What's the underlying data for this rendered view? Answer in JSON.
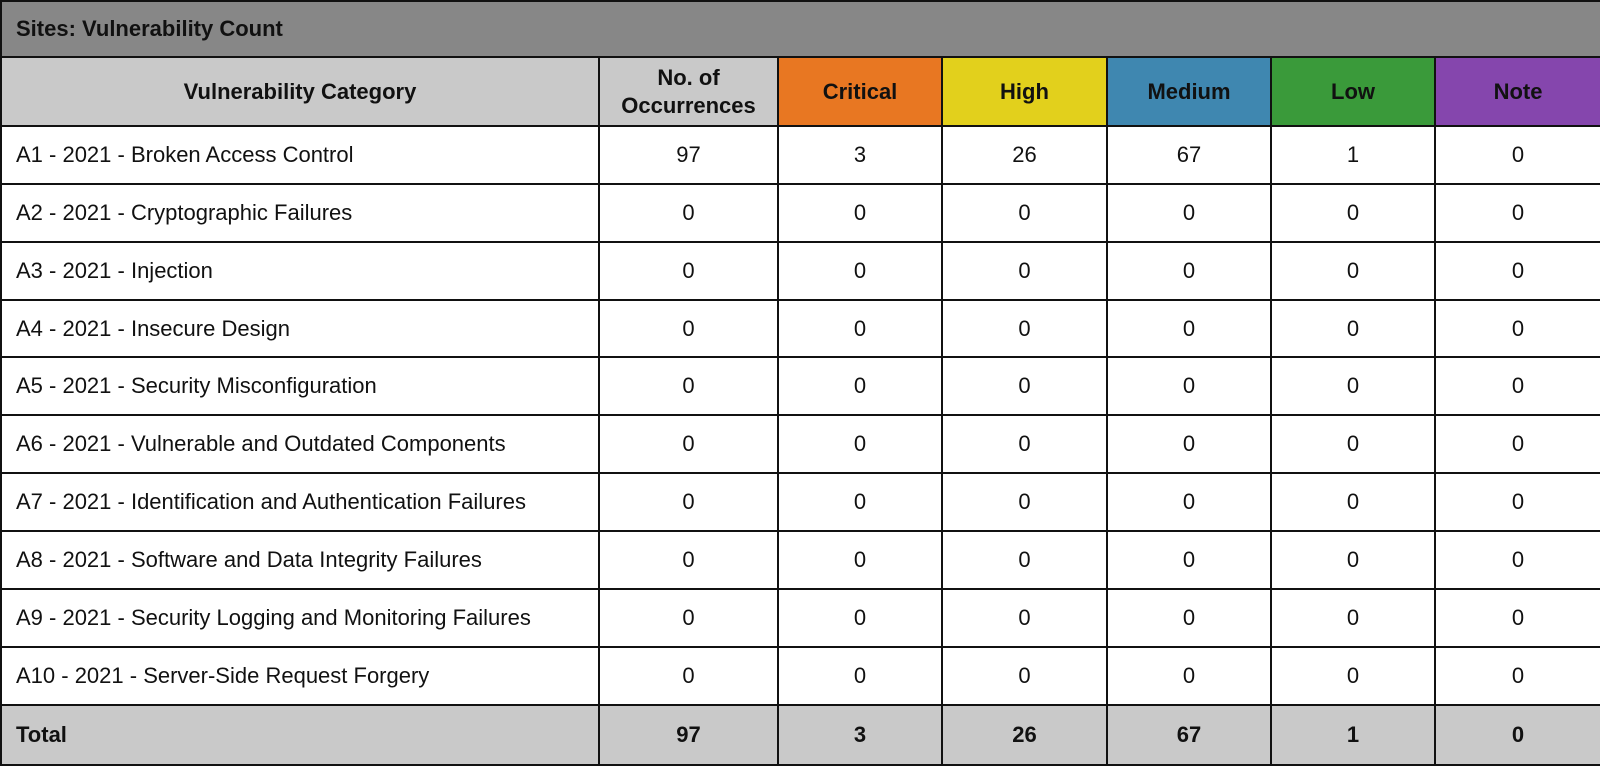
{
  "title": "Sites: Vulnerability Count",
  "table": {
    "columns": [
      "Vulnerability Category",
      "No. of Occurrences",
      "Critical",
      "High",
      "Medium",
      "Low",
      "Note"
    ],
    "rows": [
      [
        "A1 - 2021 - Broken Access Control",
        97,
        3,
        26,
        67,
        1,
        0
      ],
      [
        "A2 - 2021 - Cryptographic Failures",
        0,
        0,
        0,
        0,
        0,
        0
      ],
      [
        "A3 - 2021 - Injection",
        0,
        0,
        0,
        0,
        0,
        0
      ],
      [
        "A4 - 2021 - Insecure Design",
        0,
        0,
        0,
        0,
        0,
        0
      ],
      [
        "A5 - 2021 - Security Misconfiguration",
        0,
        0,
        0,
        0,
        0,
        0
      ],
      [
        "A6 - 2021 - Vulnerable and Outdated Components",
        0,
        0,
        0,
        0,
        0,
        0
      ],
      [
        "A7 - 2021 - Identification and Authentication Failures",
        0,
        0,
        0,
        0,
        0,
        0
      ],
      [
        "A8 - 2021 - Software and Data Integrity Failures",
        0,
        0,
        0,
        0,
        0,
        0
      ],
      [
        "A9 - 2021 - Security Logging and Monitoring Failures",
        0,
        0,
        0,
        0,
        0,
        0
      ],
      [
        "A10 - 2021 - Server-Side Request Forgery",
        0,
        0,
        0,
        0,
        0,
        0
      ]
    ],
    "total": [
      "Total",
      97,
      3,
      26,
      67,
      1,
      0
    ]
  }
}
